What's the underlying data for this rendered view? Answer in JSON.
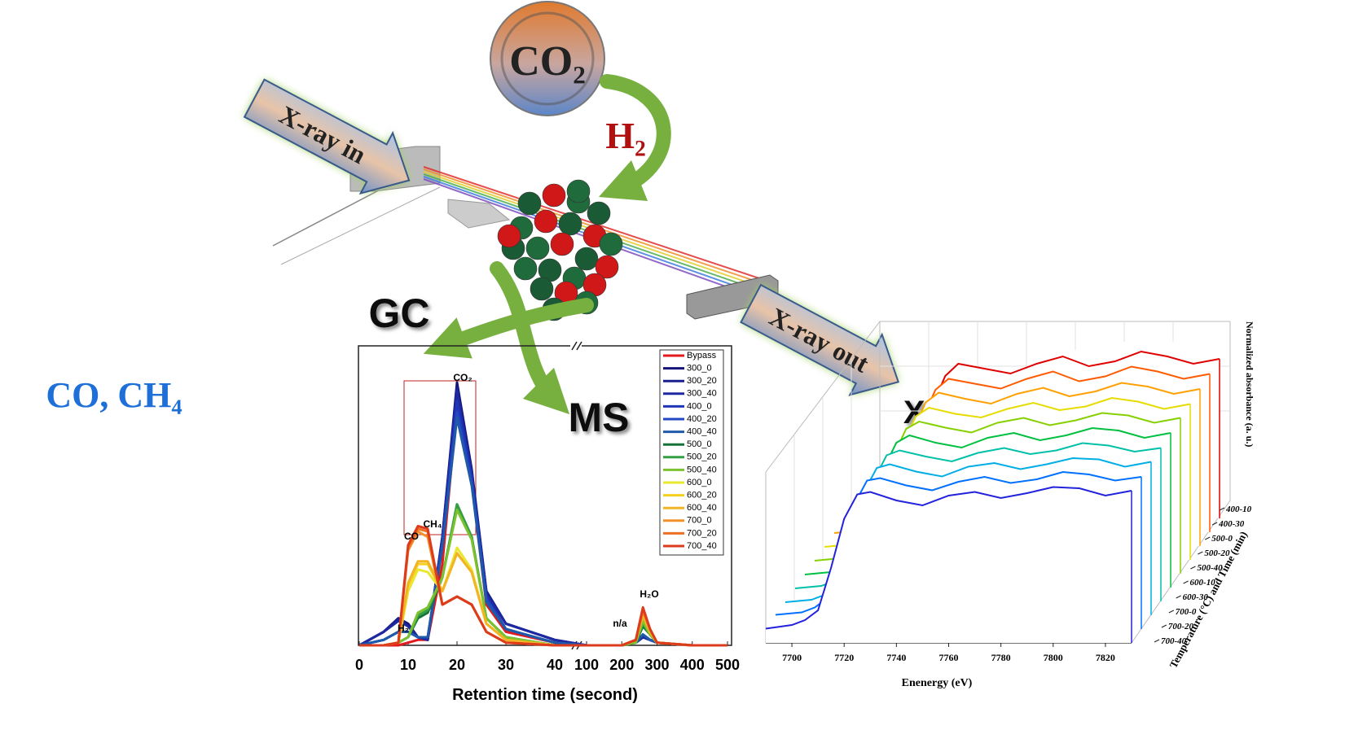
{
  "diagram": {
    "co2_label": "CO₂",
    "h2_label": "H₂",
    "xray_in": "X-ray in",
    "xray_out": "X-ray out",
    "gc_label": "GC",
    "ms_label": "MS",
    "xas_label": "XAS",
    "products": "CO, CH₄"
  },
  "chart_data": [
    {
      "type": "line",
      "x_label": "Retention time (second)",
      "x": [
        0,
        5,
        8,
        10,
        12,
        14,
        17,
        20,
        23,
        26,
        30,
        40,
        100,
        200,
        240,
        260,
        280,
        300,
        400,
        500
      ],
      "xlim": [
        0,
        500
      ],
      "x_break": [
        40,
        100
      ],
      "ylim": [
        0,
        100
      ],
      "xticks": [
        0,
        10,
        20,
        30,
        40,
        100,
        200,
        300,
        400,
        500
      ],
      "grid": false,
      "annotations": [
        "CO₂",
        "CH₄",
        "CO",
        "H₂",
        "n/a",
        "H₂O"
      ],
      "series": [
        {
          "name": "Bypass",
          "color": "#e31a1c",
          "values": [
            0,
            0,
            0,
            1,
            2,
            2,
            30,
            88,
            60,
            15,
            5,
            1,
            0,
            0,
            1,
            8,
            4,
            1,
            0,
            0
          ]
        },
        {
          "name": "300_0",
          "color": "#14147a",
          "values": [
            0,
            5,
            10,
            8,
            3,
            2,
            40,
            97,
            65,
            20,
            8,
            2,
            0,
            0,
            1,
            3,
            2,
            1,
            0,
            0
          ]
        },
        {
          "name": "300_20",
          "color": "#1a1f8f",
          "values": [
            0,
            5,
            10,
            7,
            3,
            2,
            40,
            95,
            64,
            20,
            8,
            2,
            0,
            0,
            1,
            3,
            2,
            1,
            0,
            0
          ]
        },
        {
          "name": "300_40",
          "color": "#1e28a0",
          "values": [
            0,
            5,
            9,
            7,
            3,
            2,
            39,
            94,
            63,
            19,
            8,
            2,
            0,
            0,
            1,
            3,
            2,
            1,
            0,
            0
          ]
        },
        {
          "name": "400_0",
          "color": "#1f36b8",
          "values": [
            0,
            2,
            5,
            5,
            3,
            3,
            38,
            90,
            62,
            18,
            6,
            1,
            0,
            0,
            1,
            4,
            2,
            1,
            0,
            0
          ]
        },
        {
          "name": "400_20",
          "color": "#2447c4",
          "values": [
            0,
            2,
            5,
            5,
            3,
            3,
            37,
            86,
            60,
            17,
            6,
            1,
            0,
            0,
            1,
            4,
            2,
            1,
            0,
            0
          ]
        },
        {
          "name": "400_40",
          "color": "#1f5aa8",
          "values": [
            0,
            2,
            5,
            5,
            3,
            3,
            36,
            84,
            59,
            16,
            6,
            1,
            0,
            0,
            1,
            4,
            2,
            1,
            0,
            0
          ]
        },
        {
          "name": "500_0",
          "color": "#16743a",
          "values": [
            0,
            0,
            1,
            3,
            10,
            12,
            25,
            52,
            40,
            10,
            3,
            0,
            0,
            0,
            1,
            7,
            4,
            1,
            0,
            0
          ]
        },
        {
          "name": "500_20",
          "color": "#34a043",
          "values": [
            0,
            0,
            1,
            3,
            11,
            13,
            25,
            52,
            40,
            10,
            3,
            0,
            0,
            0,
            1,
            8,
            4,
            1,
            0,
            0
          ]
        },
        {
          "name": "500_40",
          "color": "#7cc230",
          "values": [
            0,
            0,
            1,
            3,
            12,
            14,
            25,
            50,
            39,
            10,
            3,
            0,
            0,
            0,
            1,
            9,
            4,
            1,
            0,
            0
          ]
        },
        {
          "name": "600_0",
          "color": "#e8e830",
          "values": [
            0,
            0,
            1,
            20,
            28,
            27,
            20,
            36,
            28,
            8,
            2,
            0,
            0,
            0,
            2,
            11,
            5,
            1,
            0,
            0
          ]
        },
        {
          "name": "600_20",
          "color": "#f4d020",
          "values": [
            0,
            0,
            1,
            22,
            30,
            30,
            20,
            34,
            27,
            8,
            2,
            0,
            0,
            0,
            2,
            11,
            5,
            1,
            0,
            0
          ]
        },
        {
          "name": "600_40",
          "color": "#f2b324",
          "values": [
            0,
            0,
            1,
            23,
            31,
            31,
            20,
            34,
            27,
            8,
            2,
            0,
            0,
            0,
            2,
            11,
            5,
            1,
            0,
            0
          ]
        },
        {
          "name": "700_0",
          "color": "#f09228",
          "values": [
            0,
            0,
            1,
            35,
            42,
            40,
            15,
            18,
            15,
            5,
            1,
            0,
            0,
            0,
            2,
            13,
            6,
            1,
            0,
            0
          ]
        },
        {
          "name": "700_20",
          "color": "#ee6e22",
          "values": [
            0,
            0,
            1,
            36,
            43,
            42,
            15,
            18,
            15,
            5,
            1,
            0,
            0,
            0,
            2,
            13,
            6,
            1,
            0,
            0
          ]
        },
        {
          "name": "700_40",
          "color": "#dc3b1c",
          "values": [
            0,
            0,
            1,
            37,
            44,
            43,
            15,
            18,
            15,
            5,
            1,
            0,
            0,
            0,
            2,
            14,
            6,
            1,
            0,
            0
          ]
        }
      ]
    },
    {
      "type": "waterfall",
      "x_label": "Enenergy (eV)",
      "y_label": "Normalized absorbance (a. u.)",
      "z_label": "Temperature (°C) and Time (min)",
      "x": [
        7690,
        7700,
        7705,
        7710,
        7715,
        7720,
        7725,
        7730,
        7740,
        7750,
        7760,
        7770,
        7780,
        7790,
        7800,
        7810,
        7820,
        7830
      ],
      "xlim": [
        7690,
        7830
      ],
      "ylim": [
        0,
        1.6
      ],
      "xticks": [
        7700,
        7720,
        7740,
        7760,
        7780,
        7800,
        7820
      ],
      "series": [
        {
          "name": "400-10",
          "color": "#e00000",
          "values": [
            0.04,
            0.06,
            0.08,
            0.14,
            0.4,
            0.85,
            1.1,
            1.2,
            1.16,
            1.12,
            1.2,
            1.26,
            1.18,
            1.22,
            1.3,
            1.26,
            1.2,
            1.24
          ]
        },
        {
          "name": "400-30",
          "color": "#ff5a00",
          "values": [
            0.04,
            0.06,
            0.08,
            0.14,
            0.41,
            0.86,
            1.1,
            1.19,
            1.15,
            1.11,
            1.19,
            1.25,
            1.17,
            1.21,
            1.29,
            1.25,
            1.19,
            1.23
          ]
        },
        {
          "name": "500-0",
          "color": "#ffa000",
          "values": [
            0.04,
            0.06,
            0.09,
            0.15,
            0.42,
            0.87,
            1.11,
            1.19,
            1.14,
            1.1,
            1.18,
            1.23,
            1.16,
            1.2,
            1.27,
            1.24,
            1.18,
            1.22
          ]
        },
        {
          "name": "500-20",
          "color": "#e6dc00",
          "values": [
            0.04,
            0.06,
            0.09,
            0.15,
            0.43,
            0.88,
            1.11,
            1.18,
            1.13,
            1.1,
            1.17,
            1.22,
            1.16,
            1.19,
            1.26,
            1.23,
            1.17,
            1.21
          ]
        },
        {
          "name": "500-40",
          "color": "#86d000",
          "values": [
            0.04,
            0.06,
            0.09,
            0.16,
            0.44,
            0.89,
            1.12,
            1.18,
            1.13,
            1.09,
            1.17,
            1.21,
            1.15,
            1.19,
            1.25,
            1.23,
            1.17,
            1.21
          ]
        },
        {
          "name": "600-10",
          "color": "#00c040",
          "values": [
            0.04,
            0.06,
            0.09,
            0.16,
            0.45,
            0.9,
            1.12,
            1.18,
            1.12,
            1.08,
            1.16,
            1.2,
            1.14,
            1.18,
            1.24,
            1.22,
            1.16,
            1.2
          ]
        },
        {
          "name": "600-30",
          "color": "#00c0a8",
          "values": [
            0.04,
            0.06,
            0.1,
            0.17,
            0.47,
            0.92,
            1.13,
            1.17,
            1.12,
            1.08,
            1.15,
            1.19,
            1.14,
            1.17,
            1.23,
            1.21,
            1.16,
            1.19
          ]
        },
        {
          "name": "700-0",
          "color": "#00aee6",
          "values": [
            0.04,
            0.06,
            0.1,
            0.18,
            0.5,
            0.94,
            1.14,
            1.17,
            1.11,
            1.07,
            1.15,
            1.18,
            1.13,
            1.17,
            1.22,
            1.21,
            1.15,
            1.19
          ]
        },
        {
          "name": "700-20",
          "color": "#0070ff",
          "values": [
            0.05,
            0.07,
            0.11,
            0.19,
            0.53,
            0.95,
            1.15,
            1.17,
            1.11,
            1.07,
            1.14,
            1.18,
            1.13,
            1.16,
            1.22,
            1.2,
            1.15,
            1.18
          ]
        },
        {
          "name": "700-40",
          "color": "#2222dd",
          "values": [
            0.05,
            0.08,
            0.12,
            0.2,
            0.55,
            0.95,
            1.15,
            1.17,
            1.1,
            1.06,
            1.14,
            1.17,
            1.12,
            1.16,
            1.21,
            1.2,
            1.14,
            1.18
          ]
        }
      ]
    }
  ]
}
